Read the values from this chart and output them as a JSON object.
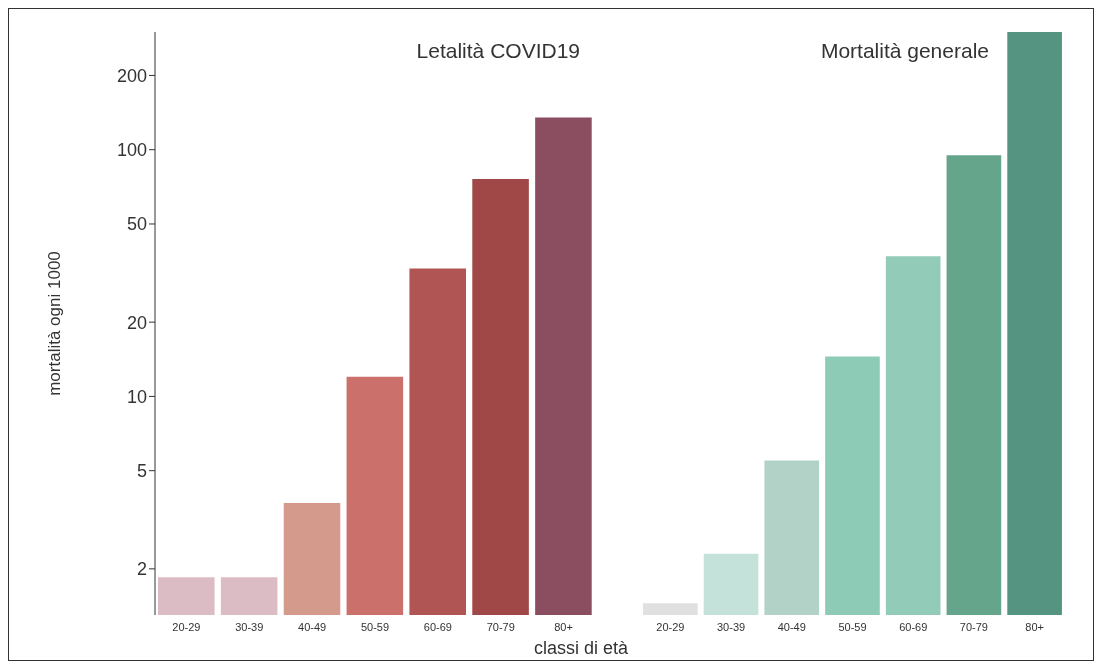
{
  "chart_data": [
    {
      "type": "bar",
      "title": "Letalità COVID19",
      "ylabel": "mortalità ogni 1000",
      "xlabel": "classi di età",
      "log": true,
      "ylim": [
        1.3,
        300
      ],
      "yticks": [
        2,
        5,
        10,
        20,
        50,
        100,
        200
      ],
      "categories": [
        "20-29",
        "30-39",
        "40-49",
        "50-59",
        "60-69",
        "70-79",
        "80+"
      ],
      "values": [
        1.85,
        1.85,
        3.7,
        12,
        33,
        76,
        135
      ],
      "colors": [
        "#dcbcc4",
        "#dcbcc4",
        "#d49a8c",
        "#cc706c",
        "#b05454",
        "#a04848",
        "#8a4e60"
      ]
    },
    {
      "type": "bar",
      "title": "Mortalità generale",
      "log": true,
      "ylim": [
        1.3,
        300
      ],
      "yticks": [
        2,
        5,
        10,
        20,
        50,
        100,
        200
      ],
      "tick_labels": "x",
      "categories": [
        "20-29",
        "30-39",
        "40-49",
        "50-59",
        "60-69",
        "70-79",
        "80+"
      ],
      "values": [
        1.45,
        2.3,
        5.5,
        14.5,
        37,
        95,
        300
      ],
      "colors": [
        "#e0e0e0",
        "#c4e2da",
        "#b2d2c8",
        "#8ecbb6",
        "#92cbb8",
        "#65a58c",
        "#559480"
      ]
    }
  ]
}
